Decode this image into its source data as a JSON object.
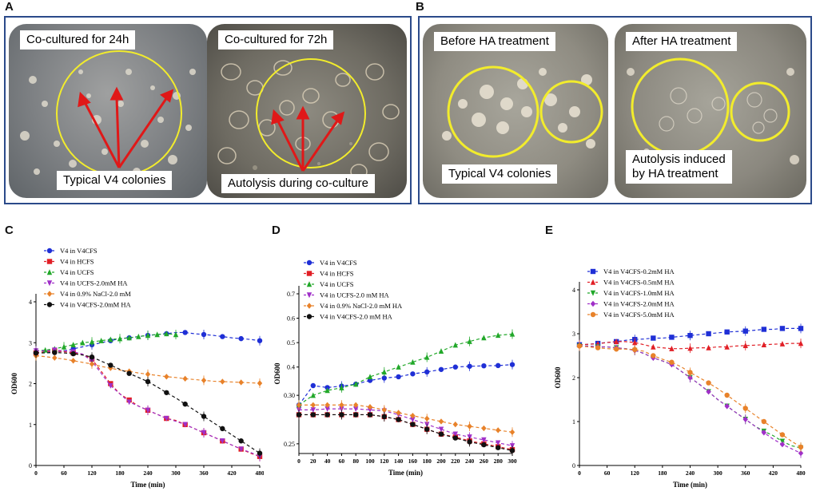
{
  "panels": {
    "A": "A",
    "B": "B",
    "C": "C",
    "D": "D",
    "E": "E"
  },
  "photos": {
    "a1": {
      "top": "Co-cultured for 24h",
      "bottom": "Typical V4 colonies"
    },
    "a2": {
      "top": "Co-cultured for 72h",
      "bottom": "Autolysis during co-culture"
    },
    "b1": {
      "top": "Before HA treatment",
      "bottom": "Typical V4 colonies"
    },
    "b2": {
      "top": "After HA treatment",
      "bottom1": "Autolysis induced",
      "bottom2": "by HA treatment"
    }
  },
  "colors": {
    "blue": "#1f2fd6",
    "red": "#e11f26",
    "green": "#22a82a",
    "purple": "#a030c8",
    "orange": "#e8822a",
    "black": "#111111",
    "frame": "#2b4a8a",
    "circle": "#f2ec2c",
    "arrow": "#e01818"
  },
  "chart_data": [
    {
      "id": "C",
      "type": "line",
      "xlabel": "Time (min)",
      "ylabel": "OD600",
      "xlim": [
        0,
        480
      ],
      "ylim": [
        0,
        4
      ],
      "xticks": [
        0,
        60,
        120,
        180,
        240,
        300,
        360,
        420,
        480
      ],
      "yticks": [
        0,
        1,
        2,
        3,
        4
      ],
      "series": [
        {
          "name": "V4 in V4CFS",
          "color": "#1f2fd6",
          "marker": "circle",
          "x": [
            0,
            20,
            40,
            60,
            80,
            100,
            120,
            140,
            160,
            180,
            200,
            220,
            240,
            260,
            280,
            300,
            320,
            340,
            360,
            380,
            400,
            420,
            440,
            460,
            480
          ],
          "y": [
            2.75,
            2.76,
            2.77,
            2.8,
            2.85,
            2.9,
            2.95,
            3.0,
            3.05,
            3.1,
            3.12,
            3.15,
            3.18,
            3.2,
            3.22,
            3.25,
            3.25,
            3.22,
            3.2,
            3.18,
            3.15,
            3.12,
            3.1,
            3.08,
            3.05
          ]
        },
        {
          "name": "V4 in HCFS",
          "color": "#e11f26",
          "marker": "square",
          "x": [
            0,
            20,
            40,
            60,
            80,
            100,
            120,
            140,
            160,
            180,
            200,
            220,
            240,
            260,
            280,
            300,
            320,
            340,
            360,
            380,
            400,
            420,
            440,
            460,
            480
          ],
          "y": [
            2.75,
            2.78,
            2.8,
            2.78,
            2.75,
            2.72,
            2.6,
            2.3,
            2.0,
            1.75,
            1.6,
            1.45,
            1.35,
            1.25,
            1.15,
            1.1,
            1.0,
            0.9,
            0.8,
            0.7,
            0.6,
            0.5,
            0.4,
            0.3,
            0.22
          ]
        },
        {
          "name": "V4 in UCFS",
          "color": "#22a82a",
          "marker": "triangle",
          "x": [
            0,
            20,
            40,
            60,
            80,
            100,
            120,
            140,
            160,
            180,
            200,
            220,
            240,
            260,
            280,
            300
          ],
          "y": [
            2.8,
            2.82,
            2.85,
            2.9,
            2.95,
            3.0,
            3.02,
            3.05,
            3.08,
            3.1,
            3.12,
            3.15,
            3.18,
            3.2,
            3.22,
            3.2
          ]
        },
        {
          "name": "V4 in UCFS-2.0mM HA",
          "color": "#a030c8",
          "marker": "tri-down",
          "x": [
            0,
            20,
            40,
            60,
            80,
            100,
            120,
            140,
            160,
            180,
            200,
            220,
            240,
            260,
            280,
            300,
            320,
            340,
            360,
            380,
            400,
            420,
            440,
            460,
            480
          ],
          "y": [
            2.8,
            2.8,
            2.82,
            2.8,
            2.78,
            2.72,
            2.55,
            2.25,
            1.95,
            1.75,
            1.55,
            1.45,
            1.35,
            1.25,
            1.15,
            1.08,
            1.0,
            0.9,
            0.8,
            0.7,
            0.6,
            0.5,
            0.4,
            0.32,
            0.22
          ]
        },
        {
          "name": "V4 in 0.9% NaCl-2.0 mM",
          "color": "#e8822a",
          "marker": "diamond",
          "x": [
            0,
            20,
            40,
            60,
            80,
            100,
            120,
            140,
            160,
            180,
            200,
            220,
            240,
            260,
            280,
            300,
            320,
            340,
            360,
            380,
            400,
            420,
            440,
            460,
            480
          ],
          "y": [
            2.68,
            2.66,
            2.63,
            2.6,
            2.56,
            2.52,
            2.48,
            2.42,
            2.38,
            2.33,
            2.3,
            2.26,
            2.23,
            2.2,
            2.17,
            2.15,
            2.12,
            2.1,
            2.08,
            2.06,
            2.05,
            2.04,
            2.03,
            2.02,
            2.01
          ]
        },
        {
          "name": "V4 in V4CFS-2.0mM HA",
          "color": "#111111",
          "marker": "circle",
          "x": [
            0,
            20,
            40,
            60,
            80,
            100,
            120,
            140,
            160,
            180,
            200,
            220,
            240,
            260,
            280,
            300,
            320,
            340,
            360,
            380,
            400,
            420,
            440,
            460,
            480
          ],
          "y": [
            2.75,
            2.75,
            2.76,
            2.75,
            2.73,
            2.7,
            2.65,
            2.55,
            2.45,
            2.35,
            2.25,
            2.15,
            2.05,
            1.92,
            1.78,
            1.65,
            1.5,
            1.35,
            1.2,
            1.05,
            0.9,
            0.75,
            0.6,
            0.45,
            0.3
          ]
        }
      ]
    },
    {
      "id": "D",
      "type": "line",
      "xlabel": "Time (min)",
      "ylabel": "OD600",
      "xlim": [
        0,
        300
      ],
      "ylim": [
        0.24,
        0.7
      ],
      "xticks": [
        0,
        20,
        40,
        60,
        80,
        100,
        120,
        140,
        160,
        180,
        200,
        220,
        240,
        260,
        280,
        300
      ],
      "yticks": [
        0.25,
        0.3,
        0.4,
        0.5,
        0.6,
        0.7
      ],
      "ytick_labels": [
        "0.25",
        "0.30",
        "0.4",
        "0.5",
        "0.6",
        "0.7"
      ],
      "series": [
        {
          "name": "V4 in V4CFS",
          "color": "#1f2fd6",
          "marker": "circle",
          "x": [
            0,
            20,
            40,
            60,
            80,
            100,
            120,
            140,
            160,
            180,
            200,
            220,
            240,
            260,
            280,
            300
          ],
          "y": [
            0.29,
            0.31,
            0.316,
            0.322,
            0.33,
            0.345,
            0.355,
            0.36,
            0.372,
            0.38,
            0.39,
            0.4,
            0.403,
            0.405,
            0.406,
            0.41
          ]
        },
        {
          "name": "V4 in HCFS",
          "color": "#e11f26",
          "marker": "square",
          "x": [
            0,
            20,
            40,
            60,
            80,
            100,
            120,
            140,
            160,
            180,
            200,
            220,
            240,
            260,
            280,
            300
          ],
          "y": [
            0.28,
            0.28,
            0.28,
            0.28,
            0.28,
            0.28,
            0.278,
            0.275,
            0.27,
            0.265,
            0.26,
            0.257,
            0.253,
            0.25,
            0.247,
            0.244
          ]
        },
        {
          "name": "V4 in UCFS",
          "color": "#22a82a",
          "marker": "triangle",
          "x": [
            0,
            20,
            40,
            60,
            80,
            100,
            120,
            140,
            160,
            180,
            200,
            220,
            240,
            260,
            280,
            300
          ],
          "y": [
            0.29,
            0.3,
            0.305,
            0.315,
            0.33,
            0.36,
            0.38,
            0.4,
            0.42,
            0.44,
            0.465,
            0.49,
            0.505,
            0.52,
            0.53,
            0.535
          ]
        },
        {
          "name": "V4 in UCFS-2.0 mM HA",
          "color": "#a030c8",
          "marker": "tri-down",
          "x": [
            0,
            20,
            40,
            60,
            80,
            100,
            120,
            140,
            160,
            180,
            200,
            220,
            240,
            260,
            280,
            300
          ],
          "y": [
            0.285,
            0.285,
            0.286,
            0.286,
            0.286,
            0.285,
            0.284,
            0.28,
            0.275,
            0.27,
            0.265,
            0.26,
            0.257,
            0.254,
            0.251,
            0.248
          ]
        },
        {
          "name": "V4 in 0.9% NaCl-2.0 mM HA",
          "color": "#e8822a",
          "marker": "diamond",
          "x": [
            0,
            20,
            40,
            60,
            80,
            100,
            120,
            140,
            160,
            180,
            200,
            220,
            240,
            260,
            280,
            300
          ],
          "y": [
            0.29,
            0.29,
            0.29,
            0.29,
            0.29,
            0.288,
            0.285,
            0.282,
            0.279,
            0.276,
            0.273,
            0.27,
            0.268,
            0.266,
            0.264,
            0.262
          ]
        },
        {
          "name": "V4 in V4CFS-2.0 mM HA",
          "color": "#111111",
          "marker": "circle",
          "x": [
            0,
            20,
            40,
            60,
            80,
            100,
            120,
            140,
            160,
            180,
            200,
            220,
            240,
            260,
            280,
            300
          ],
          "y": [
            0.28,
            0.28,
            0.28,
            0.28,
            0.28,
            0.28,
            0.278,
            0.275,
            0.27,
            0.265,
            0.26,
            0.256,
            0.252,
            0.249,
            0.246,
            0.243
          ]
        }
      ]
    },
    {
      "id": "E",
      "type": "line",
      "xlabel": "Time (min)",
      "ylabel": "OD600",
      "xlim": [
        0,
        480
      ],
      "ylim": [
        0,
        4
      ],
      "xticks": [
        0,
        60,
        120,
        180,
        240,
        300,
        360,
        420,
        480
      ],
      "yticks": [
        0,
        1,
        2,
        3,
        4
      ],
      "series": [
        {
          "name": "V4 in V4CFS-0.2mM HA",
          "color": "#1f2fd6",
          "marker": "square",
          "x": [
            0,
            20,
            40,
            60,
            80,
            100,
            120,
            140,
            160,
            180,
            200,
            220,
            240,
            260,
            280,
            300,
            320,
            340,
            360,
            380,
            400,
            420,
            440,
            460,
            480
          ],
          "y": [
            2.75,
            2.76,
            2.78,
            2.8,
            2.82,
            2.85,
            2.87,
            2.88,
            2.9,
            2.9,
            2.92,
            2.94,
            2.96,
            2.98,
            3.0,
            3.02,
            3.04,
            3.05,
            3.06,
            3.08,
            3.1,
            3.1,
            3.12,
            3.12,
            3.12
          ]
        },
        {
          "name": "V4 in V4CFS-0.5mM HA",
          "color": "#e11f26",
          "marker": "triangle",
          "x": [
            0,
            20,
            40,
            60,
            80,
            100,
            120,
            140,
            160,
            180,
            200,
            220,
            240,
            260,
            280,
            300,
            320,
            340,
            360,
            380,
            400,
            420,
            440,
            460,
            480
          ],
          "y": [
            2.75,
            2.76,
            2.77,
            2.8,
            2.82,
            2.82,
            2.8,
            2.75,
            2.7,
            2.68,
            2.66,
            2.66,
            2.67,
            2.68,
            2.68,
            2.7,
            2.7,
            2.72,
            2.73,
            2.74,
            2.75,
            2.76,
            2.77,
            2.78,
            2.78
          ]
        },
        {
          "name": "V4 in V4CFS-1.0mM HA",
          "color": "#22a82a",
          "marker": "tri-down",
          "x": [
            0,
            20,
            40,
            60,
            80,
            100,
            120,
            140,
            160,
            180,
            200,
            220,
            240,
            260,
            280,
            300,
            320,
            340,
            360,
            380,
            400,
            420,
            440,
            460,
            480
          ],
          "y": [
            2.72,
            2.72,
            2.7,
            2.7,
            2.68,
            2.66,
            2.62,
            2.55,
            2.45,
            2.38,
            2.3,
            2.15,
            2.0,
            1.85,
            1.68,
            1.5,
            1.35,
            1.2,
            1.05,
            0.9,
            0.78,
            0.68,
            0.55,
            0.45,
            0.4
          ]
        },
        {
          "name": "V4 in V4CFS-2.0mM HA",
          "color": "#a030c8",
          "marker": "diamond",
          "x": [
            0,
            20,
            40,
            60,
            80,
            100,
            120,
            140,
            160,
            180,
            200,
            220,
            240,
            260,
            280,
            300,
            320,
            340,
            360,
            380,
            400,
            420,
            440,
            460,
            480
          ],
          "y": [
            2.72,
            2.72,
            2.7,
            2.7,
            2.68,
            2.66,
            2.62,
            2.55,
            2.45,
            2.38,
            2.3,
            2.15,
            2.0,
            1.85,
            1.68,
            1.5,
            1.35,
            1.2,
            1.05,
            0.9,
            0.75,
            0.6,
            0.48,
            0.38,
            0.28
          ]
        },
        {
          "name": "V4 in V4CFS-5.0mM HA",
          "color": "#e8822a",
          "marker": "circle",
          "x": [
            0,
            20,
            40,
            60,
            80,
            100,
            120,
            140,
            160,
            180,
            200,
            220,
            240,
            260,
            280,
            300,
            320,
            340,
            360,
            380,
            400,
            420,
            440,
            460,
            480
          ],
          "y": [
            2.72,
            2.7,
            2.68,
            2.66,
            2.65,
            2.65,
            2.64,
            2.6,
            2.5,
            2.42,
            2.35,
            2.25,
            2.12,
            2.0,
            1.88,
            1.75,
            1.6,
            1.45,
            1.3,
            1.15,
            1.0,
            0.85,
            0.7,
            0.55,
            0.42
          ]
        }
      ]
    }
  ]
}
